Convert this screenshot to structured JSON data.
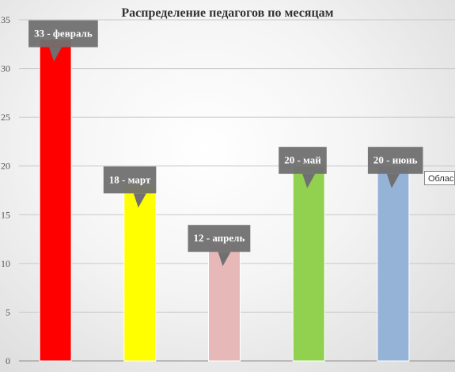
{
  "chart_data": {
    "type": "bar",
    "title": "Распределение педагогов по месяцам",
    "categories": [
      "февраль",
      "март",
      "апрель",
      "май",
      "июнь"
    ],
    "values": [
      33,
      18,
      12,
      20,
      20
    ],
    "colors": [
      "#ff0000",
      "#ffff00",
      "#e6b8b7",
      "#92d050",
      "#95b3d7"
    ],
    "data_labels": [
      "33 -  февраль",
      "18 - март",
      "12 - апрель",
      "20 - май",
      "20 - июнь"
    ],
    "yticks": [
      0,
      5,
      10,
      15,
      20,
      25,
      30,
      35
    ],
    "ylim": [
      0,
      35
    ],
    "grid": true,
    "legend": "none"
  },
  "tooltip": {
    "text": "Облас"
  }
}
